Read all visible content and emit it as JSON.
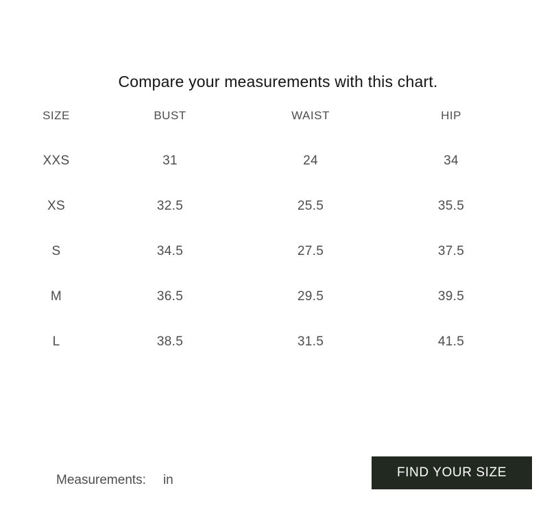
{
  "page": {
    "title": "Compare your measurements with this chart."
  },
  "size_chart": {
    "columns": [
      "SIZE",
      "BUST",
      "WAIST",
      "HIP"
    ],
    "rows": [
      [
        "XXS",
        "31",
        "24",
        "34"
      ],
      [
        "XS",
        "32.5",
        "25.5",
        "35.5"
      ],
      [
        "S",
        "34.5",
        "27.5",
        "37.5"
      ],
      [
        "M",
        "36.5",
        "29.5",
        "39.5"
      ],
      [
        "L",
        "38.5",
        "31.5",
        "41.5"
      ]
    ]
  },
  "footer": {
    "measurements_label": "Measurements:",
    "unit_value": "in",
    "find_button_label": "FIND YOUR SIZE"
  },
  "colors": {
    "table_text": "#4d4d4d",
    "title_text": "#151515",
    "button_bg": "#222921",
    "button_text": "#ffffff"
  }
}
